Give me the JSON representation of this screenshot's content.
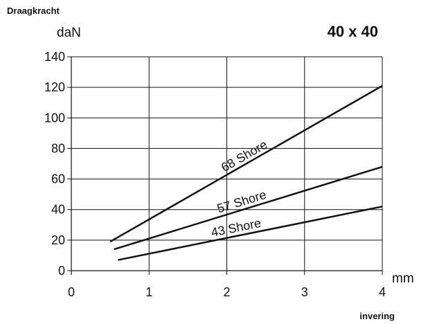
{
  "chart_data": {
    "type": "line",
    "title": "40 x 40",
    "ylabel_top": "Draagkracht",
    "ylabel": "daN",
    "xlabel": "invering",
    "xunit": "mm",
    "xlim": [
      0,
      4
    ],
    "ylim": [
      0,
      140
    ],
    "x_ticks": [
      "0",
      "1",
      "2",
      "3",
      "4"
    ],
    "y_ticks": [
      "0",
      "20",
      "40",
      "60",
      "80",
      "100",
      "120",
      "140"
    ],
    "grid": true,
    "series": [
      {
        "name": "68 Shore",
        "x": [
          0.5,
          4.0
        ],
        "y": [
          19,
          121
        ]
      },
      {
        "name": "57 Shore",
        "x": [
          0.55,
          4.0
        ],
        "y": [
          14,
          68
        ]
      },
      {
        "name": "43 Shore",
        "x": [
          0.6,
          4.0
        ],
        "y": [
          7,
          42
        ]
      }
    ],
    "colors": {
      "line": "#111111",
      "grid": "#111111"
    }
  }
}
